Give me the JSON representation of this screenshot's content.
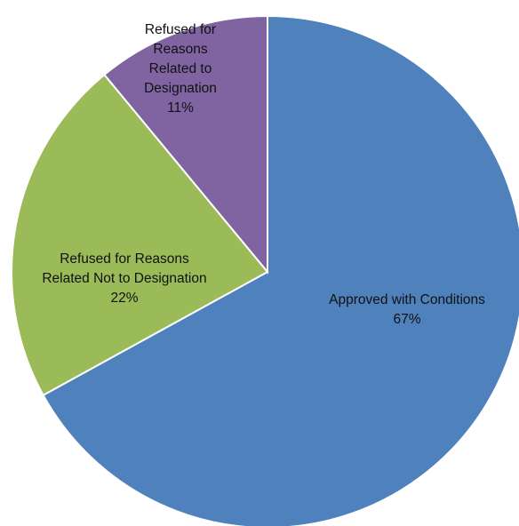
{
  "chart_data": {
    "type": "pie",
    "title": "",
    "start_angle_deg": 0,
    "direction": "clockwise",
    "legend": "none",
    "slices": [
      {
        "label_lines": [
          "Approved with Conditions"
        ],
        "value": 67,
        "percent_text": "67%",
        "color": "#4F81BD"
      },
      {
        "label_lines": [
          "Refused for Reasons",
          "Related Not to Designation"
        ],
        "value": 22,
        "percent_text": "22%",
        "color": "#9BBB59"
      },
      {
        "label_lines": [
          "Refused for",
          "Reasons",
          "Related to",
          "Designation"
        ],
        "value": 11,
        "percent_text": "11%",
        "color": "#8064A2"
      }
    ]
  }
}
